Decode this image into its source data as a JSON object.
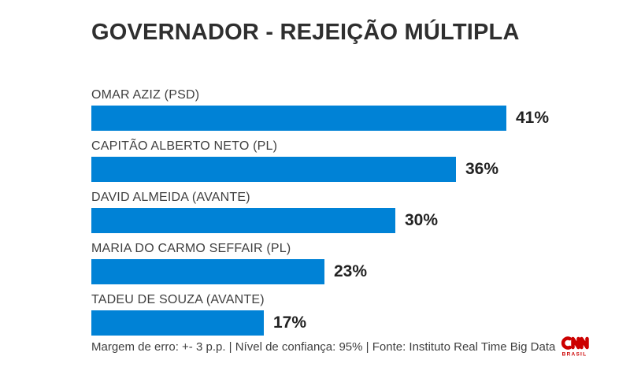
{
  "page": {
    "footer": "Margem de erro: +- 3 p.p. | Nível de confiança: 95% | Fonte: Instituto Real Time Big Data"
  },
  "logo": {
    "name": "CNN",
    "subtitle": "BRASIL",
    "color": "#cc0000"
  },
  "chart_data": {
    "type": "bar",
    "orientation": "horizontal",
    "title": "GOVERNADOR - REJEIÇÃO MÚLTIPLA",
    "categories": [
      "OMAR AZIZ (PSD)",
      "CAPITÃO ALBERTO NETO (PL)",
      "DAVID ALMEIDA (AVANTE)",
      "MARIA DO CARMO SEFFAIR (PL)",
      "TADEU DE SOUZA (AVANTE)"
    ],
    "values": [
      41,
      36,
      30,
      23,
      17
    ],
    "value_labels": [
      "41%",
      "36%",
      "30%",
      "23%",
      "17%"
    ],
    "xlim": [
      0,
      41
    ],
    "bar_color": "#0082d6",
    "label_color": "#3f3f3f",
    "grid": false,
    "legend": false
  }
}
